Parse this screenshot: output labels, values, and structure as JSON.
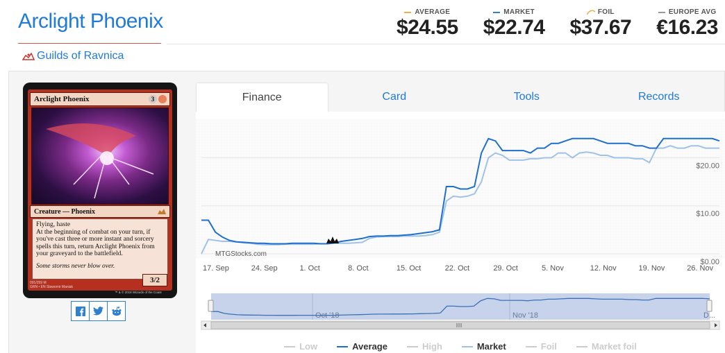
{
  "card": {
    "title": "Arclight Phoenix",
    "set": "Guilds of Ravnica",
    "mana": "3",
    "type_line": "Creature — Phoenix",
    "rules_1": "Flying, haste",
    "rules_2": "At the beginning of combat on your turn, if you've cast three or more instant and sorcery spells this turn, return Arclight Phoenix from your graveyard to the battlefield.",
    "flavor": "Some storms never blow over.",
    "pt": "3/2",
    "collector": "091/259 M",
    "set_code": "GRN • EN",
    "artist": "Slawomir Maniak",
    "copyright": "™ & © 2018 Wizards of the Coast"
  },
  "prices": [
    {
      "label": "AVERAGE",
      "value": "$24.55",
      "color": "#f0ad4e"
    },
    {
      "label": "MARKET",
      "value": "$22.74",
      "color": "#2f80d1"
    },
    {
      "label": "FOIL",
      "value": "$37.67",
      "color": "#f0ad4e"
    },
    {
      "label": "EUROPE AVG",
      "value": "€16.23",
      "color": "#999999"
    }
  ],
  "tabs": [
    {
      "label": "Finance"
    },
    {
      "label": "Card"
    },
    {
      "label": "Tools"
    },
    {
      "label": "Records"
    }
  ],
  "chart_data": {
    "type": "line",
    "y_ticks": [
      "$20.00",
      "$10.00",
      "$0.00"
    ],
    "ylim": [
      0,
      27
    ],
    "x_ticks": [
      "17. Sep",
      "24. Sep",
      "1. Oct",
      "8. Oct",
      "15. Oct",
      "22. Oct",
      "29. Oct",
      "5. Nov",
      "12. Nov",
      "19. Nov",
      "26. Nov"
    ],
    "watermark": "MTGStocks.com",
    "navigator_labels": [
      "Oct '18",
      "Nov '18",
      "D..."
    ],
    "series": [
      {
        "name": "Average",
        "color": "#1f6fcf",
        "values": [
          7,
          7,
          4.5,
          3.5,
          2.8,
          2.5,
          2.4,
          2.3,
          2.2,
          2.2,
          2.1,
          2.1,
          2.1,
          2.2,
          2.2,
          2.2,
          2.2,
          2.1,
          2.1,
          2.3,
          2.6,
          2.8,
          3,
          3.2,
          3.6,
          3.7,
          3.7,
          3.8,
          3.8,
          3.9,
          4,
          4.2,
          4.4,
          4.6,
          5,
          14,
          14,
          13.5,
          13.5,
          14,
          21,
          24,
          23.5,
          21.5,
          21.5,
          21.5,
          21.5,
          21,
          22,
          22,
          23,
          23,
          23.5,
          24,
          24,
          24,
          24,
          23.5,
          23,
          23,
          23,
          23,
          22.5,
          22.5,
          22,
          22,
          24,
          24,
          24,
          24,
          24,
          24,
          24,
          24,
          23.5
        ]
      },
      {
        "name": "Market",
        "color": "#9ec2ea",
        "values": [
          0,
          3,
          2.8,
          2.6,
          2.6,
          2.5,
          2.3,
          2.2,
          2,
          1.9,
          1.9,
          1.9,
          2,
          2,
          2,
          2,
          2,
          2.1,
          2.1,
          2.2,
          2.2,
          2.2,
          2.3,
          2.4,
          3.2,
          3.5,
          3.6,
          3.6,
          3.6,
          3.7,
          3.7,
          3.7,
          3.8,
          4,
          4.5,
          11,
          12,
          11.8,
          12,
          12.5,
          15,
          20,
          21,
          20.5,
          19.5,
          19.5,
          19.5,
          19.8,
          19.8,
          20,
          20,
          21,
          21,
          20,
          21,
          21.2,
          21,
          20.5,
          20.5,
          20,
          20,
          20,
          19.8,
          19.8,
          19,
          22,
          22,
          22.5,
          22,
          22,
          22.5,
          22.5,
          22,
          22,
          22
        ]
      }
    ],
    "legend": [
      {
        "name": "Low",
        "color": "#cccccc",
        "active": false
      },
      {
        "name": "Average",
        "color": "#1f6fcf",
        "active": true
      },
      {
        "name": "High",
        "color": "#cccccc",
        "active": false
      },
      {
        "name": "Market",
        "color": "#9ec2ea",
        "active": true
      },
      {
        "name": "Foil",
        "color": "#cccccc",
        "active": false
      },
      {
        "name": "Market foil",
        "color": "#cccccc",
        "active": false
      }
    ]
  }
}
